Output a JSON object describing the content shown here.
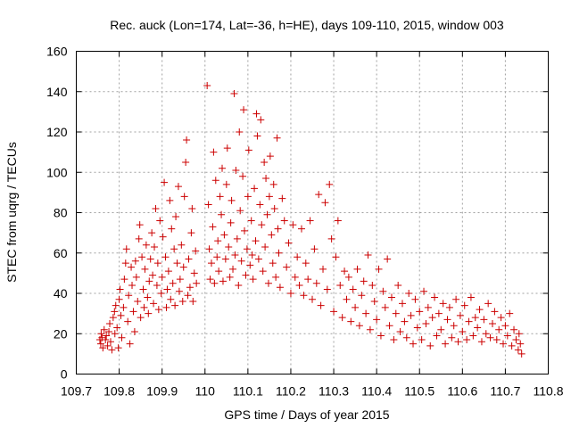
{
  "chart_data": {
    "type": "scatter",
    "title": "Rec. auck (Lon=174, Lat=-36, h=HE), days 109-110, 2015, window 003",
    "xlabel": "GPS time / Days of year 2015",
    "ylabel": "STEC from uqrg / TECUs",
    "xlim": [
      109.7,
      110.8
    ],
    "ylim": [
      0,
      160
    ],
    "xticks": [
      109.7,
      109.8,
      109.9,
      110,
      110.1,
      110.2,
      110.3,
      110.4,
      110.5,
      110.6,
      110.7,
      110.8
    ],
    "xtick_labels": [
      "109.7",
      "109.8",
      "109.9",
      "110",
      "110.1",
      "110.2",
      "110.3",
      "110.4",
      "110.5",
      "110.6",
      "110.7",
      "110.8"
    ],
    "yticks": [
      0,
      20,
      40,
      60,
      80,
      100,
      120,
      140,
      160
    ],
    "ytick_labels": [
      "0",
      "20",
      "40",
      "60",
      "80",
      "100",
      "120",
      "140",
      "160"
    ],
    "grid": true,
    "marker": "+",
    "color": "#cc0000",
    "series": [
      {
        "points": [
          [
            109.755,
            17
          ],
          [
            109.757,
            15
          ],
          [
            109.758,
            20
          ],
          [
            109.76,
            18
          ],
          [
            109.762,
            13
          ],
          [
            109.765,
            22
          ],
          [
            109.768,
            17
          ],
          [
            109.77,
            19
          ],
          [
            109.773,
            14
          ],
          [
            109.776,
            21
          ],
          [
            109.778,
            25
          ],
          [
            109.78,
            16
          ],
          [
            109.783,
            12
          ],
          [
            109.786,
            28
          ],
          [
            109.789,
            31
          ],
          [
            109.79,
            20
          ],
          [
            109.792,
            34
          ],
          [
            109.795,
            23
          ],
          [
            109.798,
            13
          ],
          [
            109.8,
            37
          ],
          [
            109.802,
            42
          ],
          [
            109.804,
            29
          ],
          [
            109.806,
            18
          ],
          [
            109.81,
            33
          ],
          [
            109.812,
            47
          ],
          [
            109.815,
            55
          ],
          [
            109.817,
            62
          ],
          [
            109.82,
            26
          ],
          [
            109.822,
            39
          ],
          [
            109.825,
            15
          ],
          [
            109.828,
            53
          ],
          [
            109.83,
            44
          ],
          [
            109.833,
            31
          ],
          [
            109.836,
            21
          ],
          [
            109.838,
            56
          ],
          [
            109.84,
            48
          ],
          [
            109.843,
            36
          ],
          [
            109.846,
            67
          ],
          [
            109.848,
            74
          ],
          [
            109.85,
            28
          ],
          [
            109.853,
            58
          ],
          [
            109.856,
            42
          ],
          [
            109.858,
            33
          ],
          [
            109.86,
            52
          ],
          [
            109.863,
            64
          ],
          [
            109.866,
            38
          ],
          [
            109.868,
            30
          ],
          [
            109.87,
            46
          ],
          [
            109.873,
            57
          ],
          [
            109.876,
            70
          ],
          [
            109.878,
            49
          ],
          [
            109.88,
            35
          ],
          [
            109.882,
            63
          ],
          [
            109.885,
            82
          ],
          [
            109.888,
            44
          ],
          [
            109.89,
            55
          ],
          [
            109.892,
            32
          ],
          [
            109.895,
            76
          ],
          [
            109.898,
            40
          ],
          [
            109.9,
            48
          ],
          [
            109.902,
            68
          ],
          [
            109.905,
            95
          ],
          [
            109.908,
            58
          ],
          [
            109.91,
            33
          ],
          [
            109.912,
            42
          ],
          [
            109.915,
            51
          ],
          [
            109.918,
            86
          ],
          [
            109.92,
            37
          ],
          [
            109.922,
            72
          ],
          [
            109.925,
            45
          ],
          [
            109.928,
            62
          ],
          [
            109.93,
            34
          ],
          [
            109.932,
            78
          ],
          [
            109.935,
            55
          ],
          [
            109.938,
            93
          ],
          [
            109.94,
            41
          ],
          [
            109.942,
            47
          ],
          [
            109.945,
            64
          ],
          [
            109.948,
            36
          ],
          [
            109.95,
            53
          ],
          [
            109.952,
            88
          ],
          [
            109.955,
            105
          ],
          [
            109.957,
            116
          ],
          [
            109.96,
            39
          ],
          [
            109.962,
            57
          ],
          [
            109.965,
            43
          ],
          [
            109.968,
            70
          ],
          [
            109.97,
            82
          ],
          [
            109.972,
            36
          ],
          [
            109.975,
            50
          ],
          [
            109.978,
            61
          ],
          [
            109.98,
            45
          ],
          [
            110.005,
            143
          ],
          [
            110.008,
            84
          ],
          [
            110.01,
            62
          ],
          [
            110.012,
            47
          ],
          [
            110.015,
            55
          ],
          [
            110.018,
            73
          ],
          [
            110.02,
            110
          ],
          [
            110.022,
            45
          ],
          [
            110.025,
            96
          ],
          [
            110.028,
            58
          ],
          [
            110.03,
            66
          ],
          [
            110.032,
            51
          ],
          [
            110.035,
            88
          ],
          [
            110.038,
            79
          ],
          [
            110.04,
            102
          ],
          [
            110.042,
            46
          ],
          [
            110.045,
            69
          ],
          [
            110.048,
            57
          ],
          [
            110.05,
            94
          ],
          [
            110.052,
            112
          ],
          [
            110.055,
            63
          ],
          [
            110.058,
            48
          ],
          [
            110.06,
            75
          ],
          [
            110.062,
            86
          ],
          [
            110.065,
            52
          ],
          [
            110.068,
            139
          ],
          [
            110.07,
            59
          ],
          [
            110.072,
            101
          ],
          [
            110.075,
            67
          ],
          [
            110.078,
            44
          ],
          [
            110.08,
            120
          ],
          [
            110.082,
            81
          ],
          [
            110.085,
            56
          ],
          [
            110.088,
            98
          ],
          [
            110.09,
            131
          ],
          [
            110.092,
            71
          ],
          [
            110.095,
            49
          ],
          [
            110.098,
            62
          ],
          [
            110.1,
            88
          ],
          [
            110.102,
            111
          ],
          [
            110.105,
            54
          ],
          [
            110.108,
            76
          ],
          [
            110.11,
            59
          ],
          [
            110.112,
            47
          ],
          [
            110.115,
            92
          ],
          [
            110.118,
            66
          ],
          [
            110.12,
            129
          ],
          [
            110.122,
            118
          ],
          [
            110.125,
            57
          ],
          [
            110.128,
            84
          ],
          [
            110.13,
            126
          ],
          [
            110.132,
            74
          ],
          [
            110.135,
            51
          ],
          [
            110.138,
            105
          ],
          [
            110.14,
            63
          ],
          [
            110.142,
            97
          ],
          [
            110.145,
            79
          ],
          [
            110.148,
            45
          ],
          [
            110.15,
            88
          ],
          [
            110.152,
            108
          ],
          [
            110.155,
            69
          ],
          [
            110.158,
            55
          ],
          [
            110.16,
            94
          ],
          [
            110.162,
            82
          ],
          [
            110.165,
            48
          ],
          [
            110.168,
            117
          ],
          [
            110.17,
            72
          ],
          [
            110.172,
            60
          ],
          [
            110.175,
            43
          ],
          [
            110.18,
            87
          ],
          [
            110.185,
            76
          ],
          [
            110.19,
            53
          ],
          [
            110.195,
            65
          ],
          [
            110.2,
            40
          ],
          [
            110.205,
            74
          ],
          [
            110.21,
            48
          ],
          [
            110.215,
            58
          ],
          [
            110.22,
            44
          ],
          [
            110.225,
            72
          ],
          [
            110.23,
            39
          ],
          [
            110.235,
            55
          ],
          [
            110.24,
            47
          ],
          [
            110.245,
            76
          ],
          [
            110.25,
            37
          ],
          [
            110.255,
            62
          ],
          [
            110.26,
            45
          ],
          [
            110.265,
            89
          ],
          [
            110.27,
            34
          ],
          [
            110.275,
            52
          ],
          [
            110.28,
            85
          ],
          [
            110.285,
            42
          ],
          [
            110.29,
            94
          ],
          [
            110.295,
            67
          ],
          [
            110.3,
            31
          ],
          [
            110.305,
            58
          ],
          [
            110.31,
            76
          ],
          [
            110.315,
            44
          ],
          [
            110.32,
            28
          ],
          [
            110.325,
            51
          ],
          [
            110.33,
            37
          ],
          [
            110.335,
            48
          ],
          [
            110.34,
            26
          ],
          [
            110.345,
            42
          ],
          [
            110.35,
            33
          ],
          [
            110.355,
            52
          ],
          [
            110.36,
            24
          ],
          [
            110.365,
            39
          ],
          [
            110.37,
            46
          ],
          [
            110.375,
            30
          ],
          [
            110.38,
            59
          ],
          [
            110.385,
            22
          ],
          [
            110.39,
            44
          ],
          [
            110.395,
            36
          ],
          [
            110.4,
            27
          ],
          [
            110.405,
            52
          ],
          [
            110.41,
            19
          ],
          [
            110.415,
            41
          ],
          [
            110.42,
            33
          ],
          [
            110.425,
            57
          ],
          [
            110.43,
            24
          ],
          [
            110.435,
            38
          ],
          [
            110.44,
            17
          ],
          [
            110.445,
            30
          ],
          [
            110.45,
            44
          ],
          [
            110.455,
            21
          ],
          [
            110.46,
            35
          ],
          [
            110.465,
            26
          ],
          [
            110.47,
            18
          ],
          [
            110.475,
            40
          ],
          [
            110.48,
            29
          ],
          [
            110.485,
            15
          ],
          [
            110.49,
            37
          ],
          [
            110.495,
            23
          ],
          [
            110.5,
            31
          ],
          [
            110.505,
            17
          ],
          [
            110.51,
            41
          ],
          [
            110.515,
            25
          ],
          [
            110.52,
            33
          ],
          [
            110.525,
            14
          ],
          [
            110.53,
            28
          ],
          [
            110.535,
            38
          ],
          [
            110.54,
            19
          ],
          [
            110.545,
            30
          ],
          [
            110.55,
            22
          ],
          [
            110.555,
            35
          ],
          [
            110.56,
            15
          ],
          [
            110.565,
            27
          ],
          [
            110.57,
            33
          ],
          [
            110.575,
            18
          ],
          [
            110.58,
            24
          ],
          [
            110.585,
            37
          ],
          [
            110.59,
            16
          ],
          [
            110.595,
            29
          ],
          [
            110.6,
            21
          ],
          [
            110.605,
            34
          ],
          [
            110.61,
            17
          ],
          [
            110.615,
            26
          ],
          [
            110.62,
            38
          ],
          [
            110.625,
            19
          ],
          [
            110.63,
            28
          ],
          [
            110.635,
            23
          ],
          [
            110.64,
            32
          ],
          [
            110.645,
            16
          ],
          [
            110.65,
            27
          ],
          [
            110.655,
            20
          ],
          [
            110.66,
            35
          ],
          [
            110.665,
            18
          ],
          [
            110.67,
            25
          ],
          [
            110.675,
            31
          ],
          [
            110.68,
            17
          ],
          [
            110.685,
            22
          ],
          [
            110.69,
            28
          ],
          [
            110.695,
            15
          ],
          [
            110.7,
            24
          ],
          [
            110.705,
            19
          ],
          [
            110.71,
            30
          ],
          [
            110.715,
            14
          ],
          [
            110.72,
            22
          ],
          [
            110.725,
            17
          ],
          [
            110.73,
            12
          ],
          [
            110.732,
            20
          ],
          [
            110.735,
            15
          ],
          [
            110.738,
            10
          ]
        ]
      }
    ]
  }
}
